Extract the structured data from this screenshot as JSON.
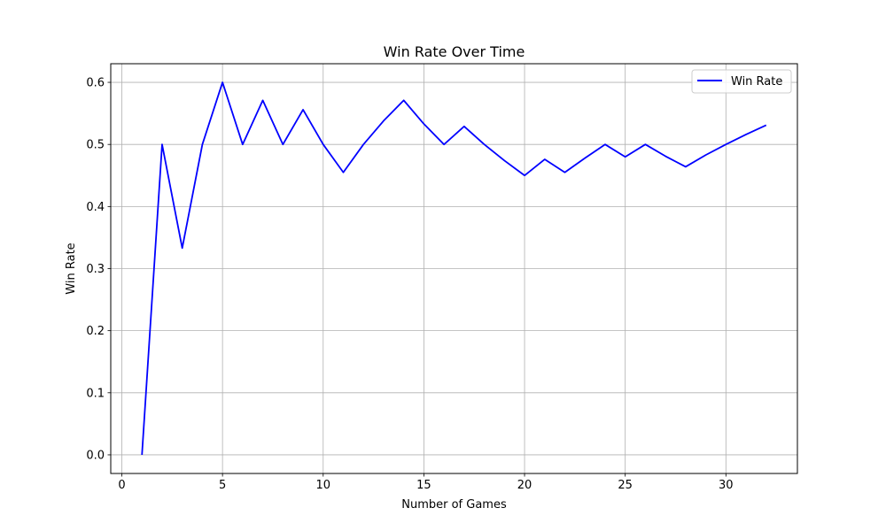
{
  "chart_data": {
    "type": "line",
    "title": "Win Rate Over Time",
    "xlabel": "Number of Games",
    "ylabel": "Win Rate",
    "xlim": [
      -0.55,
      33.55
    ],
    "ylim": [
      -0.03,
      0.63
    ],
    "xticks": [
      0,
      5,
      10,
      15,
      20,
      25,
      30
    ],
    "xtick_labels": [
      "0",
      "5",
      "10",
      "15",
      "20",
      "25",
      "30"
    ],
    "yticks": [
      0.0,
      0.1,
      0.2,
      0.3,
      0.4,
      0.5,
      0.6
    ],
    "ytick_labels": [
      "0.0",
      "0.1",
      "0.2",
      "0.3",
      "0.4",
      "0.5",
      "0.6"
    ],
    "grid": true,
    "legend_position": "top-right",
    "series": [
      {
        "name": "Win Rate",
        "color": "#0000ff",
        "x": [
          1,
          2,
          3,
          4,
          5,
          6,
          7,
          8,
          9,
          10,
          11,
          12,
          13,
          14,
          15,
          16,
          17,
          18,
          19,
          20,
          21,
          22,
          23,
          24,
          25,
          26,
          27,
          28,
          29,
          30,
          31,
          32
        ],
        "y": [
          0.0,
          0.5,
          0.333,
          0.5,
          0.6,
          0.5,
          0.571,
          0.5,
          0.556,
          0.5,
          0.455,
          0.5,
          0.538,
          0.571,
          0.533,
          0.5,
          0.529,
          0.5,
          0.474,
          0.45,
          0.476,
          0.455,
          0.478,
          0.5,
          0.48,
          0.5,
          0.481,
          0.464,
          0.483,
          0.5,
          0.516,
          0.531
        ]
      }
    ]
  }
}
